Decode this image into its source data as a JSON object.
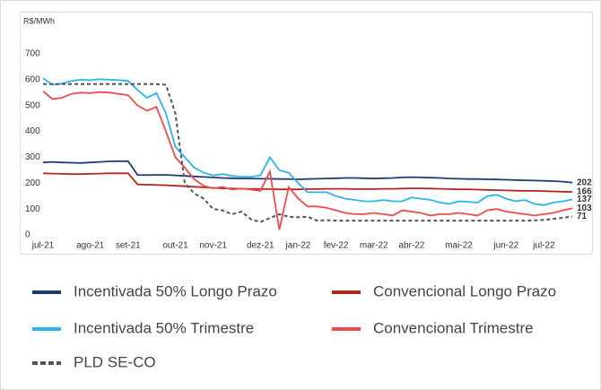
{
  "chart_data": {
    "type": "line",
    "y_label": "R$/MWh",
    "categories": [
      "jul-21",
      null,
      null,
      null,
      null,
      "ago-21",
      null,
      null,
      null,
      "set-21",
      null,
      null,
      null,
      null,
      "out-21",
      null,
      null,
      null,
      "nov-21",
      null,
      null,
      null,
      null,
      "dez-21",
      null,
      null,
      null,
      "jan-22",
      null,
      null,
      null,
      "fev-22",
      null,
      null,
      null,
      "mar-22",
      null,
      null,
      null,
      "abr-22",
      null,
      null,
      null,
      null,
      "mai-22",
      null,
      null,
      null,
      null,
      "jun-22",
      null,
      null,
      null,
      "jul-22",
      null,
      null,
      null
    ],
    "ylim": [
      0,
      700
    ],
    "yticks": [
      0,
      100,
      200,
      300,
      400,
      500,
      600,
      700
    ],
    "grid": false,
    "series": [
      {
        "name": "Incentivada 50% Longo Prazo",
        "color": "#1f3b73",
        "dash": false,
        "values": [
          280,
          282,
          280,
          279,
          278,
          280,
          282,
          284,
          285,
          285,
          232,
          231,
          232,
          232,
          230,
          228,
          226,
          224,
          222,
          220,
          219,
          218,
          218,
          217,
          217,
          216,
          216,
          215,
          216,
          217,
          218,
          219,
          220,
          220,
          219,
          218,
          219,
          220,
          222,
          223,
          222,
          221,
          220,
          218,
          217,
          216,
          216,
          215,
          214,
          213,
          212,
          211,
          210,
          209,
          208,
          206,
          202
        ]
      },
      {
        "name": "Convencional Longo Prazo",
        "color": "#b3261e",
        "dash": false,
        "values": [
          238,
          237,
          236,
          235,
          235,
          236,
          237,
          238,
          238,
          238,
          195,
          194,
          193,
          192,
          190,
          188,
          186,
          184,
          182,
          180,
          179,
          178,
          178,
          177,
          177,
          176,
          176,
          176,
          177,
          177,
          178,
          178,
          178,
          177,
          177,
          177,
          178,
          178,
          179,
          180,
          180,
          179,
          178,
          177,
          176,
          176,
          175,
          174,
          173,
          172,
          171,
          170,
          170,
          169,
          168,
          167,
          166
        ]
      },
      {
        "name": "Incentivada 50% Trimestre",
        "color": "#2bb5e6",
        "dash": false,
        "values": [
          605,
          580,
          585,
          595,
          600,
          598,
          602,
          600,
          598,
          595,
          560,
          530,
          548,
          470,
          340,
          300,
          260,
          240,
          230,
          235,
          228,
          225,
          225,
          230,
          300,
          250,
          240,
          200,
          165,
          165,
          165,
          150,
          140,
          135,
          130,
          130,
          135,
          130,
          130,
          145,
          140,
          135,
          125,
          120,
          130,
          128,
          125,
          150,
          155,
          140,
          130,
          135,
          120,
          115,
          125,
          130,
          137
        ]
      },
      {
        "name": "Convencional Trimestre",
        "color": "#f04a4a",
        "dash": false,
        "values": [
          555,
          525,
          530,
          545,
          550,
          548,
          552,
          550,
          545,
          540,
          500,
          480,
          495,
          400,
          300,
          260,
          215,
          190,
          180,
          185,
          175,
          180,
          175,
          170,
          245,
          20,
          185,
          140,
          110,
          110,
          105,
          95,
          85,
          80,
          80,
          85,
          80,
          75,
          95,
          90,
          85,
          75,
          80,
          80,
          85,
          80,
          75,
          95,
          100,
          90,
          85,
          80,
          75,
          80,
          85,
          95,
          103
        ]
      },
      {
        "name": "PLD SE-CO",
        "color": "#555555",
        "dash": true,
        "values": [
          583,
          583,
          583,
          583,
          583,
          583,
          583,
          583,
          583,
          583,
          583,
          583,
          583,
          580,
          470,
          200,
          160,
          140,
          100,
          95,
          80,
          90,
          60,
          50,
          65,
          80,
          70,
          68,
          70,
          55,
          57,
          55,
          55,
          55,
          55,
          55,
          55,
          55,
          55,
          55,
          55,
          55,
          55,
          55,
          55,
          55,
          55,
          55,
          55,
          55,
          55,
          55,
          56,
          58,
          62,
          66,
          71
        ]
      }
    ]
  }
}
